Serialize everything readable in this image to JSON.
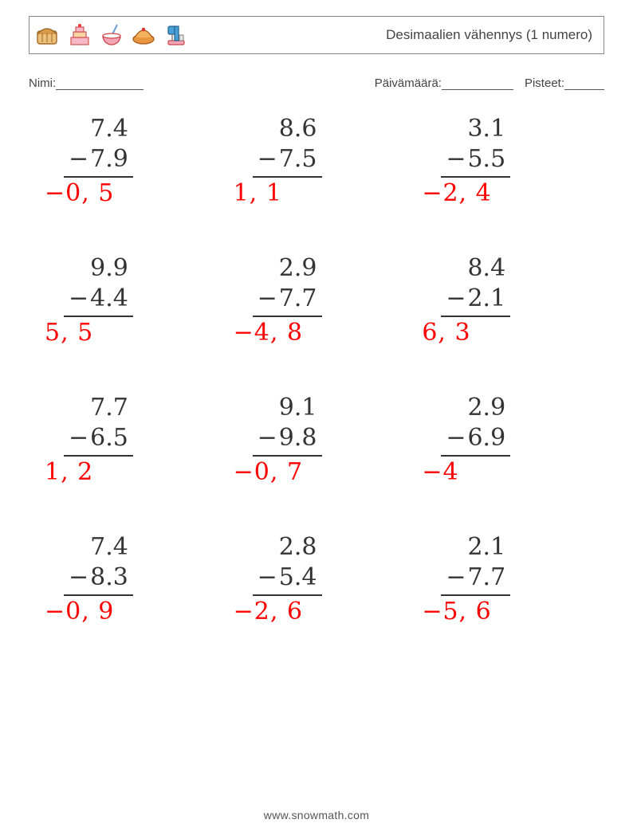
{
  "header": {
    "title": "Desimaalien vähennys (1 numero)",
    "icon_names": [
      "bread-icon",
      "cake-icon",
      "bowl-icon",
      "pie-icon",
      "mixer-icon"
    ]
  },
  "info": {
    "name_label": "Nimi:",
    "name_line_width": 110,
    "date_label": "Päivämäärä:",
    "date_line_width": 90,
    "score_label": "Pisteet:",
    "score_line_width": 50
  },
  "style": {
    "number_color": "#333333",
    "answer_color": "#ff0000",
    "number_fontsize": 30,
    "answer_fontsize": 30,
    "rule_color": "#333333",
    "background_color": "#ffffff",
    "grid_cols": 3,
    "grid_rows": 4
  },
  "problems": [
    {
      "a": "7.4",
      "op": "−",
      "b": "7.9",
      "ans": "−0, 5"
    },
    {
      "a": "8.6",
      "op": "−",
      "b": "7.5",
      "ans": "1, 1"
    },
    {
      "a": "3.1",
      "op": "−",
      "b": "5.5",
      "ans": "−2, 4"
    },
    {
      "a": "9.9",
      "op": "−",
      "b": "4.4",
      "ans": "5, 5"
    },
    {
      "a": "2.9",
      "op": "−",
      "b": "7.7",
      "ans": "−4, 8"
    },
    {
      "a": "8.4",
      "op": "−",
      "b": "2.1",
      "ans": "6, 3"
    },
    {
      "a": "7.7",
      "op": "−",
      "b": "6.5",
      "ans": "1, 2"
    },
    {
      "a": "9.1",
      "op": "−",
      "b": "9.8",
      "ans": "−0, 7"
    },
    {
      "a": "2.9",
      "op": "−",
      "b": "6.9",
      "ans": "−4"
    },
    {
      "a": "7.4",
      "op": "−",
      "b": "8.3",
      "ans": "−0, 9"
    },
    {
      "a": "2.8",
      "op": "−",
      "b": "5.4",
      "ans": "−2, 6"
    },
    {
      "a": "2.1",
      "op": "−",
      "b": "7.7",
      "ans": "−5, 6"
    }
  ],
  "footer": {
    "text": "www.snowmath.com"
  }
}
